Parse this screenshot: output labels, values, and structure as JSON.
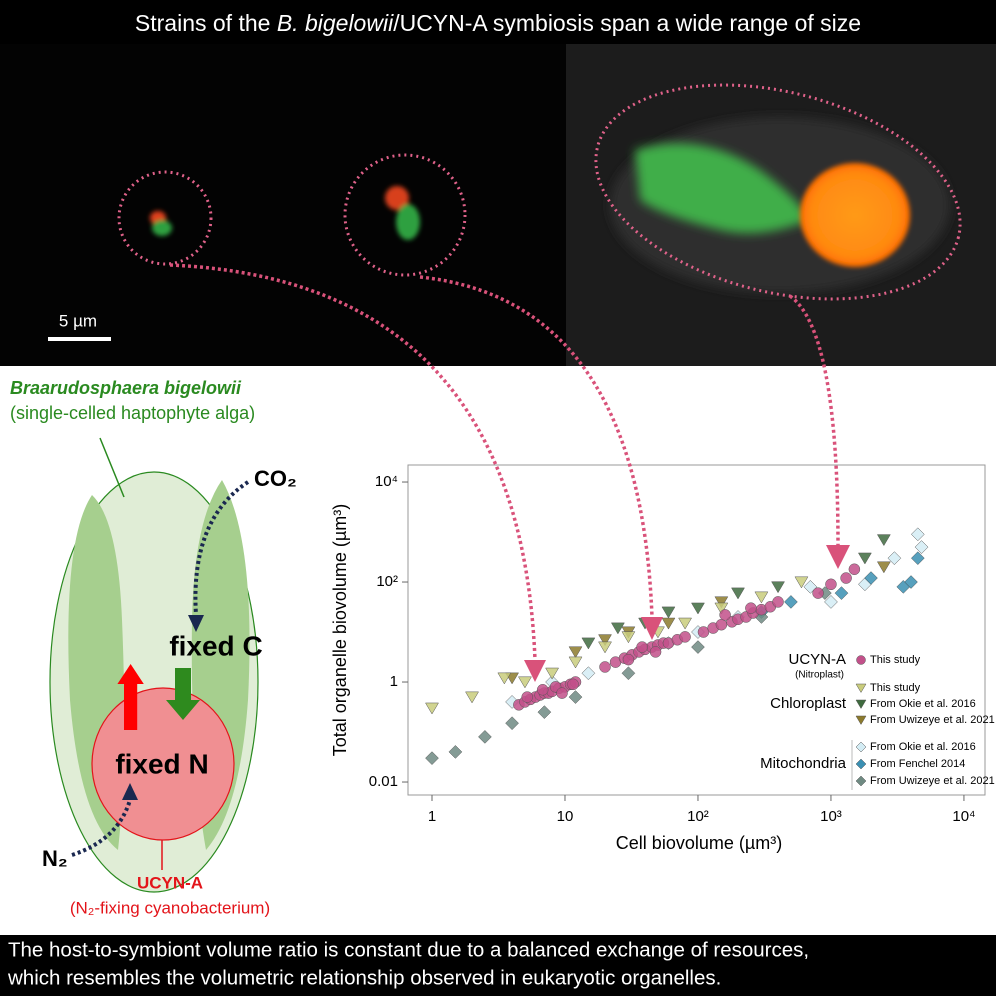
{
  "header": {
    "title_parts": [
      "Strains of the ",
      "B. bigelowii",
      "/UCYN-A symbiosis span a wide range of size"
    ]
  },
  "micrograph": {
    "scale_bar": "5 µm"
  },
  "diagram": {
    "host_name": "Braarudosphaera bigelowii",
    "host_desc": "(single-celled haptophyte alga)",
    "co2": "CO₂",
    "fixed_c": "fixed C",
    "fixed_n": "fixed N",
    "n2": "N₂",
    "symbiont": "UCYN-A",
    "symbiont_desc": "(N₂-fixing cyanobacterium)"
  },
  "chart_data": {
    "type": "scatter",
    "x_label": "Cell biovolume (µm³)",
    "y_label": "Total organelle biovolume (µm³)",
    "log_x": true,
    "log_y": true,
    "xlim": [
      0.66,
      14400
    ],
    "ylim": [
      0.0055,
      21900
    ],
    "xticks": [
      1,
      10,
      {
        "value": 100,
        "label": "10²"
      },
      {
        "value": 1000,
        "label": "10³"
      },
      {
        "value": 10000,
        "label": "10⁴"
      }
    ],
    "yticks": [
      0.01,
      1,
      {
        "value": 100,
        "label": "10²"
      },
      {
        "value": 10000,
        "label": "10⁴"
      }
    ],
    "series": [
      {
        "name": "This study",
        "group": "UCYN-A",
        "group_note": "(Nitroplast)",
        "marker": "circle",
        "color": "#c2508a",
        "x": [
          4.5,
          5,
          5.5,
          6,
          6.5,
          7,
          7.5,
          8,
          9,
          10,
          11,
          12,
          5.2,
          6.8,
          8.5,
          9.5,
          11.5,
          20,
          24,
          28,
          32,
          36,
          40,
          45,
          50,
          55,
          60,
          70,
          80,
          30,
          38,
          48,
          110,
          130,
          150,
          180,
          200,
          230,
          260,
          300,
          350,
          400,
          160,
          250,
          800,
          1000,
          1300,
          1500
        ],
        "values": [
          0.35,
          0.4,
          0.45,
          0.5,
          0.55,
          0.6,
          0.6,
          0.65,
          0.75,
          0.8,
          0.9,
          1.0,
          0.5,
          0.7,
          0.8,
          0.6,
          0.9,
          2,
          2.5,
          3,
          3.5,
          4,
          4.5,
          5,
          5.5,
          6,
          6,
          7,
          8,
          2.8,
          5,
          4,
          10,
          12,
          14,
          16,
          18,
          20,
          24,
          28,
          32,
          40,
          22,
          30,
          60,
          90,
          120,
          180
        ]
      },
      {
        "name": "This study",
        "group": "Chloroplast",
        "marker": "triangle",
        "color": "#c9cc7c",
        "x": [
          1,
          2,
          3.5,
          5,
          8,
          12,
          20,
          30,
          50,
          80,
          150,
          300,
          600
        ],
        "values": [
          0.3,
          0.5,
          1.2,
          1,
          1.5,
          2.5,
          5,
          8,
          10,
          15,
          30,
          50,
          100
        ]
      },
      {
        "name": "From Okie et al. 2016",
        "group": "Chloroplast",
        "marker": "triangle",
        "color": "#3f6b3f",
        "x": [
          15,
          25,
          40,
          60,
          100,
          200,
          400,
          2500,
          1800
        ],
        "values": [
          6,
          12,
          15,
          25,
          30,
          60,
          80,
          700,
          300
        ]
      },
      {
        "name": "From Uwizeye et al. 2021",
        "group": "Chloroplast",
        "marker": "triangle",
        "color": "#8c7a2c",
        "x": [
          4,
          12,
          20,
          30,
          60,
          150,
          2500
        ],
        "values": [
          1.2,
          4,
          7,
          10,
          15,
          40,
          200
        ]
      },
      {
        "name": "From Okie et al. 2016",
        "group": "Mitochondria",
        "marker": "diamond",
        "color": "#d3ecf4",
        "x": [
          4,
          8,
          15,
          30,
          60,
          100,
          200,
          700,
          1000,
          1800,
          3000,
          4500,
          4800
        ],
        "values": [
          0.4,
          1,
          1.5,
          3,
          6,
          10,
          20,
          80,
          40,
          90,
          300,
          900,
          500
        ]
      },
      {
        "name": "From Fenchel 2014",
        "group": "Mitochondria",
        "marker": "diamond",
        "color": "#3a8fb2",
        "x": [
          300,
          500,
          1200,
          2000,
          3500,
          4000,
          4500
        ],
        "values": [
          25,
          40,
          60,
          120,
          80,
          100,
          300
        ]
      },
      {
        "name": "From Uwizeye et al. 2021",
        "group": "Mitochondria",
        "marker": "diamond",
        "color": "#6f8a82",
        "x": [
          1,
          1.5,
          2.5,
          4,
          7,
          12,
          30,
          100,
          300,
          900
        ],
        "values": [
          0.03,
          0.04,
          0.08,
          0.15,
          0.25,
          0.5,
          1.5,
          5,
          20,
          60
        ]
      }
    ]
  },
  "footer": {
    "lines": [
      "The host-to-symbiont volume ratio is constant due to a balanced exchange of resources,",
      "which resembles the volumetric relationship observed in eukaryotic organelles."
    ]
  }
}
